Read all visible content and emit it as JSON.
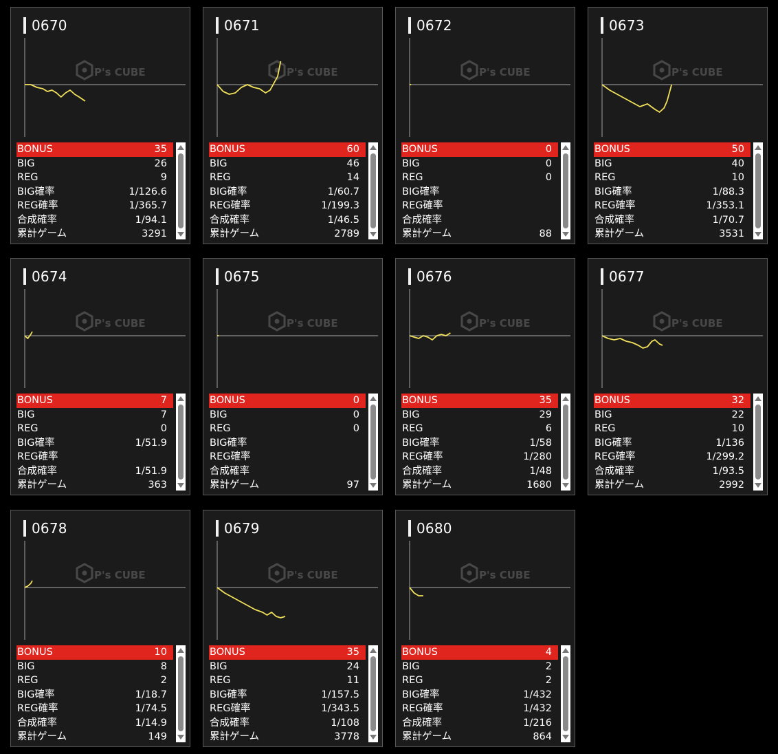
{
  "labels": {
    "bonus": "BONUS",
    "big": "BIG",
    "reg": "REG",
    "big_rate": "BIG確率",
    "reg_rate": "REG確率",
    "combined_rate": "合成確率",
    "total_games": "累計ゲーム"
  },
  "watermark": {
    "logo_text": "P's CUBE"
  },
  "colors": {
    "accent": "#e0241e",
    "line": "#f2e15a",
    "axis": "#8c8c8c",
    "background": "#000000",
    "card": "#1b1b1c"
  },
  "machines": [
    {
      "id": "0670",
      "bonus": "35",
      "big": "26",
      "reg": "9",
      "big_rate": "1/126.6",
      "reg_rate": "1/365.7",
      "combined_rate": "1/94.1",
      "total_games": "3291",
      "graph": [
        [
          0,
          0
        ],
        [
          4,
          0
        ],
        [
          8,
          -2
        ],
        [
          12,
          -3
        ],
        [
          15,
          -5
        ],
        [
          18,
          -4
        ],
        [
          21,
          -6
        ],
        [
          24,
          -9
        ],
        [
          27,
          -6
        ],
        [
          30,
          -4
        ],
        [
          33,
          -7
        ],
        [
          36,
          -9
        ],
        [
          40,
          -12
        ]
      ]
    },
    {
      "id": "0671",
      "bonus": "60",
      "big": "46",
      "reg": "14",
      "big_rate": "1/60.7",
      "reg_rate": "1/199.3",
      "combined_rate": "1/46.5",
      "total_games": "2789",
      "graph": [
        [
          0,
          0
        ],
        [
          4,
          -5
        ],
        [
          8,
          -7
        ],
        [
          12,
          -6
        ],
        [
          16,
          -2
        ],
        [
          20,
          0
        ],
        [
          24,
          -2
        ],
        [
          28,
          -3
        ],
        [
          32,
          -6
        ],
        [
          35,
          -4
        ],
        [
          38,
          2
        ],
        [
          40,
          6
        ],
        [
          42,
          17
        ]
      ]
    },
    {
      "id": "0672",
      "bonus": "0",
      "big": "0",
      "reg": "0",
      "big_rate": "",
      "reg_rate": "",
      "combined_rate": "",
      "total_games": "88",
      "graph": [
        [
          0,
          0
        ],
        [
          1,
          0
        ]
      ]
    },
    {
      "id": "0673",
      "bonus": "50",
      "big": "40",
      "reg": "10",
      "big_rate": "1/88.3",
      "reg_rate": "1/353.1",
      "combined_rate": "1/70.7",
      "total_games": "3531",
      "graph": [
        [
          0,
          0
        ],
        [
          5,
          -4
        ],
        [
          10,
          -7
        ],
        [
          15,
          -10
        ],
        [
          20,
          -13
        ],
        [
          25,
          -16
        ],
        [
          30,
          -14
        ],
        [
          35,
          -18
        ],
        [
          38,
          -20
        ],
        [
          41,
          -17
        ],
        [
          43,
          -12
        ],
        [
          46,
          0
        ]
      ]
    },
    {
      "id": "0674",
      "bonus": "7",
      "big": "7",
      "reg": "0",
      "big_rate": "1/51.9",
      "reg_rate": "",
      "combined_rate": "1/51.9",
      "total_games": "363",
      "graph": [
        [
          0,
          0
        ],
        [
          2,
          -2
        ],
        [
          4,
          1
        ],
        [
          5,
          3
        ]
      ]
    },
    {
      "id": "0675",
      "bonus": "0",
      "big": "0",
      "reg": "0",
      "big_rate": "",
      "reg_rate": "",
      "combined_rate": "",
      "total_games": "97",
      "graph": [
        [
          0,
          0
        ],
        [
          1,
          0
        ]
      ]
    },
    {
      "id": "0676",
      "bonus": "35",
      "big": "29",
      "reg": "6",
      "big_rate": "1/58",
      "reg_rate": "1/280",
      "combined_rate": "1/48",
      "total_games": "1680",
      "graph": [
        [
          0,
          0
        ],
        [
          3,
          -1
        ],
        [
          6,
          -2
        ],
        [
          9,
          0
        ],
        [
          12,
          -1
        ],
        [
          15,
          -3
        ],
        [
          18,
          0
        ],
        [
          21,
          1
        ],
        [
          24,
          0
        ],
        [
          27,
          2
        ]
      ]
    },
    {
      "id": "0677",
      "bonus": "32",
      "big": "22",
      "reg": "10",
      "big_rate": "1/136",
      "reg_rate": "1/299.2",
      "combined_rate": "1/93.5",
      "total_games": "2992",
      "graph": [
        [
          0,
          0
        ],
        [
          4,
          -2
        ],
        [
          8,
          -3
        ],
        [
          12,
          -2
        ],
        [
          16,
          -4
        ],
        [
          20,
          -5
        ],
        [
          24,
          -7
        ],
        [
          27,
          -9
        ],
        [
          30,
          -8
        ],
        [
          33,
          -4
        ],
        [
          35,
          -3
        ],
        [
          38,
          -6
        ],
        [
          40,
          -7
        ]
      ]
    },
    {
      "id": "0678",
      "bonus": "10",
      "big": "8",
      "reg": "2",
      "big_rate": "1/18.7",
      "reg_rate": "1/74.5",
      "combined_rate": "1/14.9",
      "total_games": "149",
      "graph": [
        [
          0,
          0
        ],
        [
          2,
          1
        ],
        [
          4,
          3
        ],
        [
          5,
          5
        ]
      ]
    },
    {
      "id": "0679",
      "bonus": "35",
      "big": "24",
      "reg": "11",
      "big_rate": "1/157.5",
      "reg_rate": "1/343.5",
      "combined_rate": "1/108",
      "total_games": "3778",
      "graph": [
        [
          0,
          0
        ],
        [
          5,
          -4
        ],
        [
          10,
          -7
        ],
        [
          15,
          -10
        ],
        [
          20,
          -13
        ],
        [
          25,
          -16
        ],
        [
          30,
          -18
        ],
        [
          33,
          -20
        ],
        [
          36,
          -18
        ],
        [
          39,
          -21
        ],
        [
          42,
          -22
        ],
        [
          45,
          -21
        ]
      ]
    },
    {
      "id": "0680",
      "bonus": "4",
      "big": "2",
      "reg": "2",
      "big_rate": "1/432",
      "reg_rate": "1/432",
      "combined_rate": "1/216",
      "total_games": "864",
      "graph": [
        [
          0,
          0
        ],
        [
          3,
          -4
        ],
        [
          6,
          -6
        ],
        [
          9,
          -6
        ]
      ]
    }
  ]
}
